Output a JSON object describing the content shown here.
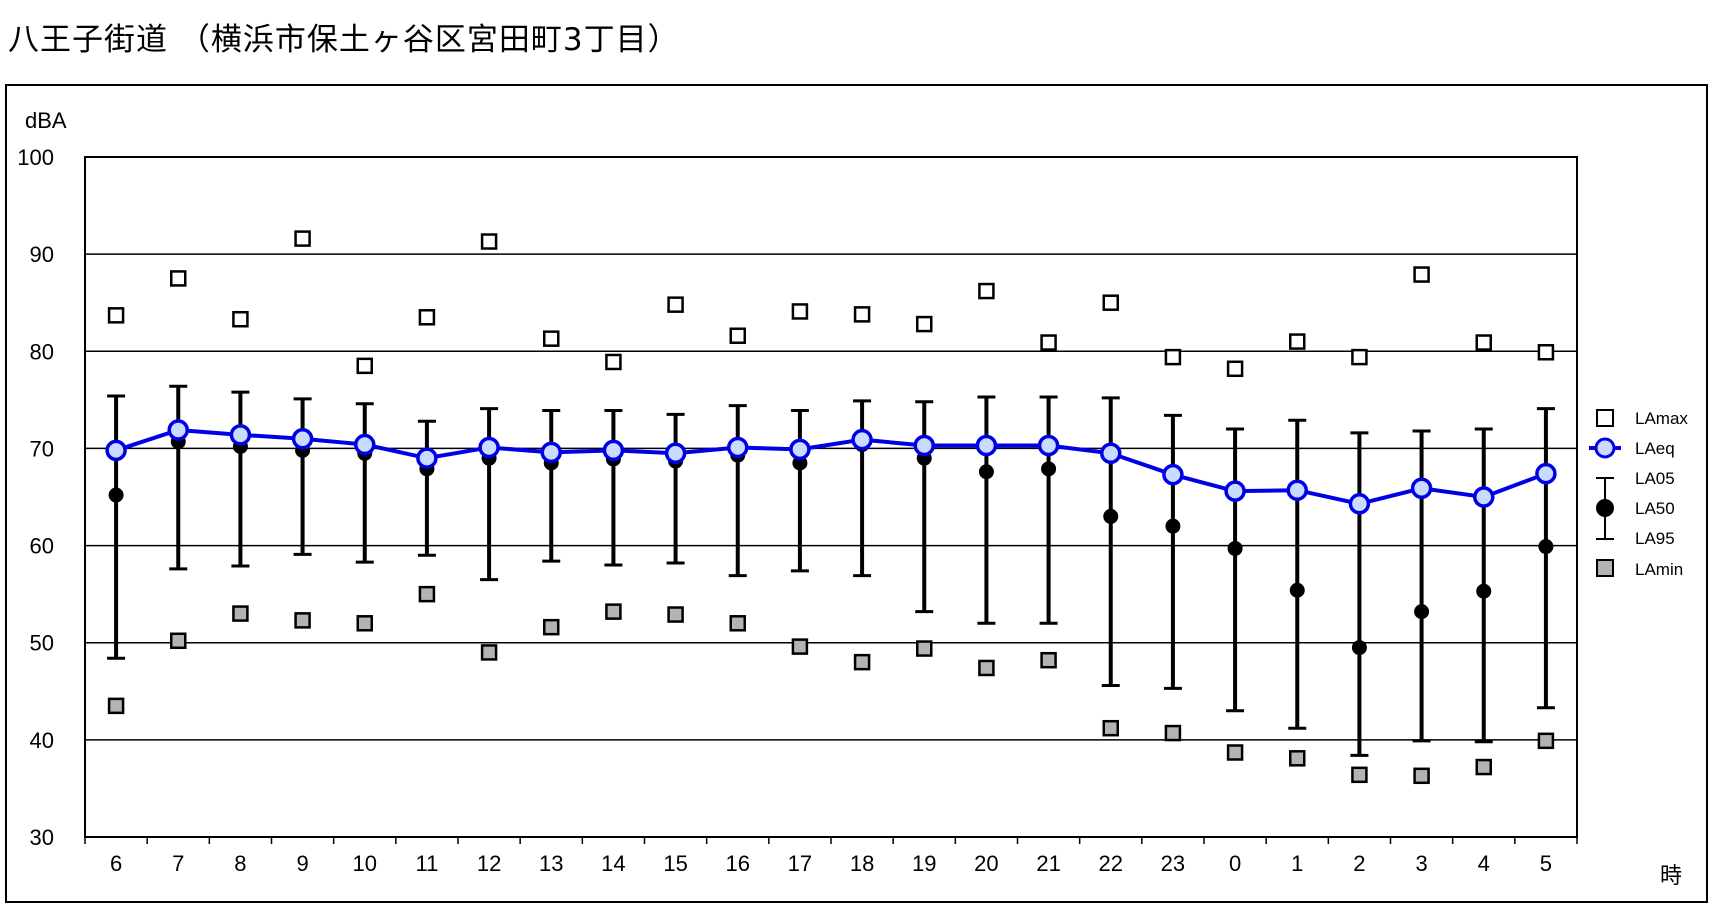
{
  "title": "八王子街道 （横浜市保土ヶ谷区宮田町3丁目）",
  "chart_data": {
    "type": "line",
    "title": "八王子街道 （横浜市保土ヶ谷区宮田町3丁目）",
    "ylabel": "dBA",
    "xlabel": "時",
    "ylim": [
      30,
      100
    ],
    "yticks": [
      "30",
      "40",
      "50",
      "60",
      "70",
      "80",
      "90",
      "100"
    ],
    "grid": true,
    "legend_position": "right",
    "categories": [
      "6",
      "7",
      "8",
      "9",
      "10",
      "11",
      "12",
      "13",
      "14",
      "15",
      "16",
      "17",
      "18",
      "19",
      "20",
      "21",
      "22",
      "23",
      "0",
      "1",
      "2",
      "3",
      "4",
      "5"
    ],
    "series": [
      {
        "name": "LAmax",
        "values": [
          83.7,
          87.5,
          83.3,
          91.6,
          78.5,
          83.5,
          91.3,
          81.3,
          78.9,
          84.8,
          81.6,
          84.1,
          83.8,
          82.8,
          86.2,
          80.9,
          85.0,
          79.4,
          78.2,
          81.0,
          79.4,
          87.9,
          80.9,
          79.9
        ]
      },
      {
        "name": "LAeq",
        "values": [
          69.8,
          71.9,
          71.4,
          71.0,
          70.4,
          69.0,
          70.1,
          69.6,
          69.8,
          69.5,
          70.1,
          69.9,
          70.9,
          70.3,
          70.3,
          70.3,
          69.5,
          67.3,
          65.6,
          65.7,
          64.3,
          65.9,
          65.0,
          67.4
        ]
      },
      {
        "name": "LA05",
        "values": [
          75.4,
          76.4,
          75.8,
          75.1,
          74.6,
          72.8,
          74.1,
          73.9,
          73.9,
          73.5,
          74.4,
          73.9,
          74.9,
          74.8,
          75.3,
          75.3,
          75.2,
          73.4,
          72.0,
          72.9,
          71.6,
          71.8,
          72.0,
          74.1
        ]
      },
      {
        "name": "LA50",
        "values": [
          65.2,
          70.7,
          70.2,
          69.8,
          69.5,
          67.9,
          69.0,
          68.5,
          68.9,
          68.7,
          69.3,
          68.5,
          70.4,
          69.0,
          67.6,
          67.9,
          63.0,
          62.0,
          59.7,
          55.4,
          49.5,
          53.2,
          55.3,
          59.9
        ]
      },
      {
        "name": "LA95",
        "values": [
          48.4,
          57.6,
          57.9,
          59.1,
          58.3,
          59.0,
          56.5,
          58.4,
          58.0,
          58.2,
          56.9,
          57.4,
          56.9,
          53.2,
          52.0,
          52.0,
          45.6,
          45.3,
          43.0,
          41.2,
          38.4,
          39.9,
          39.8,
          43.3
        ]
      },
      {
        "name": "LAmin",
        "values": [
          43.5,
          50.2,
          53.0,
          52.3,
          52.0,
          55.0,
          49.0,
          51.6,
          53.2,
          52.9,
          52.0,
          49.6,
          48.0,
          49.4,
          47.4,
          48.2,
          41.2,
          40.7,
          38.7,
          38.1,
          36.4,
          36.3,
          37.2,
          39.9
        ]
      }
    ],
    "colors": {
      "LAeq_line": "#0000e6",
      "LAeq_fill": "#c9dcff",
      "LAmin_fill": "#b3b3b3",
      "LA50_fill": "#000000",
      "LAmax_fill": "#ffffff"
    }
  }
}
